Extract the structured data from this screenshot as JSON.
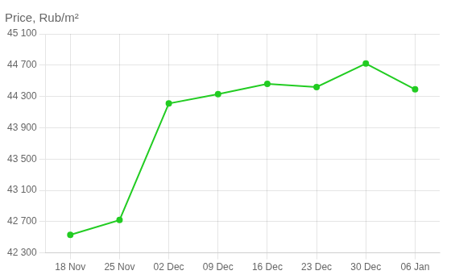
{
  "chart_data": {
    "type": "line",
    "title": "Price, Rub/m²",
    "categories": [
      "18 Nov",
      "25 Nov",
      "02 Dec",
      "09 Dec",
      "16 Dec",
      "23 Dec",
      "30 Dec",
      "06 Jan"
    ],
    "values": [
      42530,
      42720,
      44210,
      44330,
      44460,
      44420,
      44720,
      44390
    ],
    "color": "#22cc22",
    "marker": "circle",
    "ylim": [
      42300,
      45100
    ],
    "yticks": [
      {
        "value": 42300,
        "label": "42 300"
      },
      {
        "value": 42700,
        "label": "42 700"
      },
      {
        "value": 43100,
        "label": "43 100"
      },
      {
        "value": 43500,
        "label": "43 500"
      },
      {
        "value": 43900,
        "label": "43 900"
      },
      {
        "value": 44300,
        "label": "44 300"
      },
      {
        "value": 44700,
        "label": "44 700"
      },
      {
        "value": 45100,
        "label": "45 100"
      }
    ],
    "grid": true
  }
}
